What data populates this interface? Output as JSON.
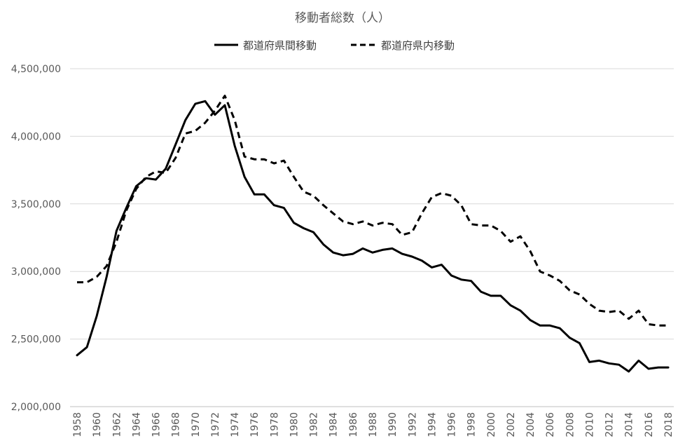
{
  "chart_data": {
    "type": "line",
    "title": "移動者総数（人）",
    "xlabel": "",
    "ylabel": "",
    "x": [
      1958,
      1959,
      1960,
      1961,
      1962,
      1963,
      1964,
      1965,
      1966,
      1967,
      1968,
      1969,
      1970,
      1971,
      1972,
      1973,
      1974,
      1975,
      1976,
      1977,
      1978,
      1979,
      1980,
      1981,
      1982,
      1983,
      1984,
      1985,
      1986,
      1987,
      1988,
      1989,
      1990,
      1991,
      1992,
      1993,
      1994,
      1995,
      1996,
      1997,
      1998,
      1999,
      2000,
      2001,
      2002,
      2003,
      2004,
      2005,
      2006,
      2007,
      2008,
      2009,
      2010,
      2011,
      2012,
      2013,
      2014,
      2015,
      2016,
      2017,
      2018
    ],
    "x_tick_labels": [
      "1958",
      "1960",
      "1962",
      "1964",
      "1966",
      "1968",
      "1970",
      "1972",
      "1974",
      "1976",
      "1978",
      "1980",
      "1982",
      "1984",
      "1986",
      "1988",
      "1990",
      "1992",
      "1994",
      "1996",
      "1998",
      "2000",
      "2002",
      "2004",
      "2006",
      "2008",
      "2010",
      "2012",
      "2014",
      "2016",
      "2018"
    ],
    "ylim": [
      2000000,
      4500000
    ],
    "y_ticks": [
      2000000,
      2500000,
      3000000,
      3500000,
      4000000,
      4500000
    ],
    "y_tick_labels": [
      "2,000,000",
      "2,500,000",
      "3,000,000",
      "3,500,000",
      "4,000,000",
      "4,500,000"
    ],
    "grid": "horizontal",
    "legend_position": "top",
    "series": [
      {
        "name": "都道府県間移動",
        "style": "solid",
        "color": "#000000",
        "values": [
          2380000,
          2440000,
          2670000,
          2960000,
          3300000,
          3470000,
          3630000,
          3690000,
          3680000,
          3760000,
          3940000,
          4120000,
          4240000,
          4260000,
          4160000,
          4230000,
          3930000,
          3700000,
          3570000,
          3570000,
          3490000,
          3470000,
          3360000,
          3320000,
          3290000,
          3200000,
          3140000,
          3120000,
          3130000,
          3170000,
          3140000,
          3160000,
          3170000,
          3130000,
          3110000,
          3080000,
          3030000,
          3050000,
          2970000,
          2940000,
          2930000,
          2850000,
          2820000,
          2820000,
          2750000,
          2710000,
          2640000,
          2600000,
          2600000,
          2580000,
          2510000,
          2470000,
          2330000,
          2340000,
          2320000,
          2310000,
          2260000,
          2340000,
          2280000,
          2290000,
          2290000
        ]
      },
      {
        "name": "都道府県内移動",
        "style": "dashed",
        "color": "#000000",
        "values": [
          2920000,
          2920000,
          2960000,
          3040000,
          3220000,
          3450000,
          3610000,
          3700000,
          3740000,
          3730000,
          3840000,
          4020000,
          4040000,
          4100000,
          4190000,
          4300000,
          4120000,
          3850000,
          3830000,
          3830000,
          3800000,
          3820000,
          3700000,
          3590000,
          3560000,
          3490000,
          3430000,
          3370000,
          3350000,
          3370000,
          3340000,
          3360000,
          3350000,
          3270000,
          3290000,
          3430000,
          3550000,
          3580000,
          3560000,
          3490000,
          3350000,
          3340000,
          3340000,
          3300000,
          3220000,
          3260000,
          3150000,
          3000000,
          2970000,
          2930000,
          2860000,
          2830000,
          2760000,
          2710000,
          2700000,
          2710000,
          2650000,
          2710000,
          2610000,
          2600000,
          2600000
        ]
      }
    ]
  }
}
